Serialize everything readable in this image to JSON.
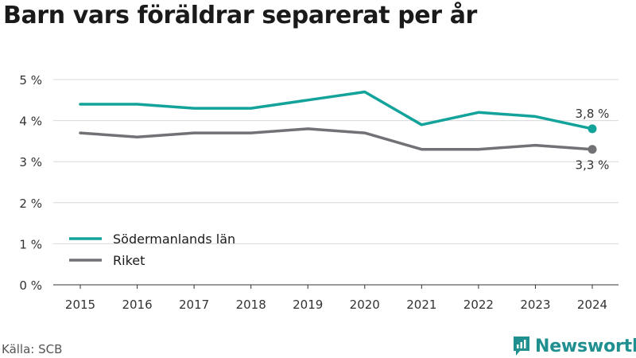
{
  "title": "Barn vars föräldrar separerat per år",
  "source": "Källa: SCB",
  "brand": {
    "name": "Newsworthy"
  },
  "colors": {
    "series_1": "#13a39a",
    "series_2": "#717176",
    "brand": "#1f8f8f"
  },
  "chart_data": {
    "type": "line",
    "x": [
      "2015",
      "2016",
      "2017",
      "2018",
      "2019",
      "2020",
      "2021",
      "2022",
      "2023",
      "2024"
    ],
    "series": [
      {
        "name": "Södermanlands län",
        "values": [
          4.4,
          4.4,
          4.3,
          4.3,
          4.5,
          4.7,
          3.9,
          4.2,
          4.1,
          3.8
        ],
        "end_label": "3,8 %"
      },
      {
        "name": "Riket",
        "values": [
          3.7,
          3.6,
          3.7,
          3.7,
          3.8,
          3.7,
          3.3,
          3.3,
          3.4,
          3.3
        ],
        "end_label": "3,3 %"
      }
    ],
    "ylim": [
      0,
      5
    ],
    "yticks": [
      0,
      1,
      2,
      3,
      4,
      5
    ],
    "ytick_labels": [
      "0 %",
      "1 %",
      "2 %",
      "3 %",
      "4 %",
      "5 %"
    ],
    "grid": true,
    "legend_position": "bottom-left"
  }
}
